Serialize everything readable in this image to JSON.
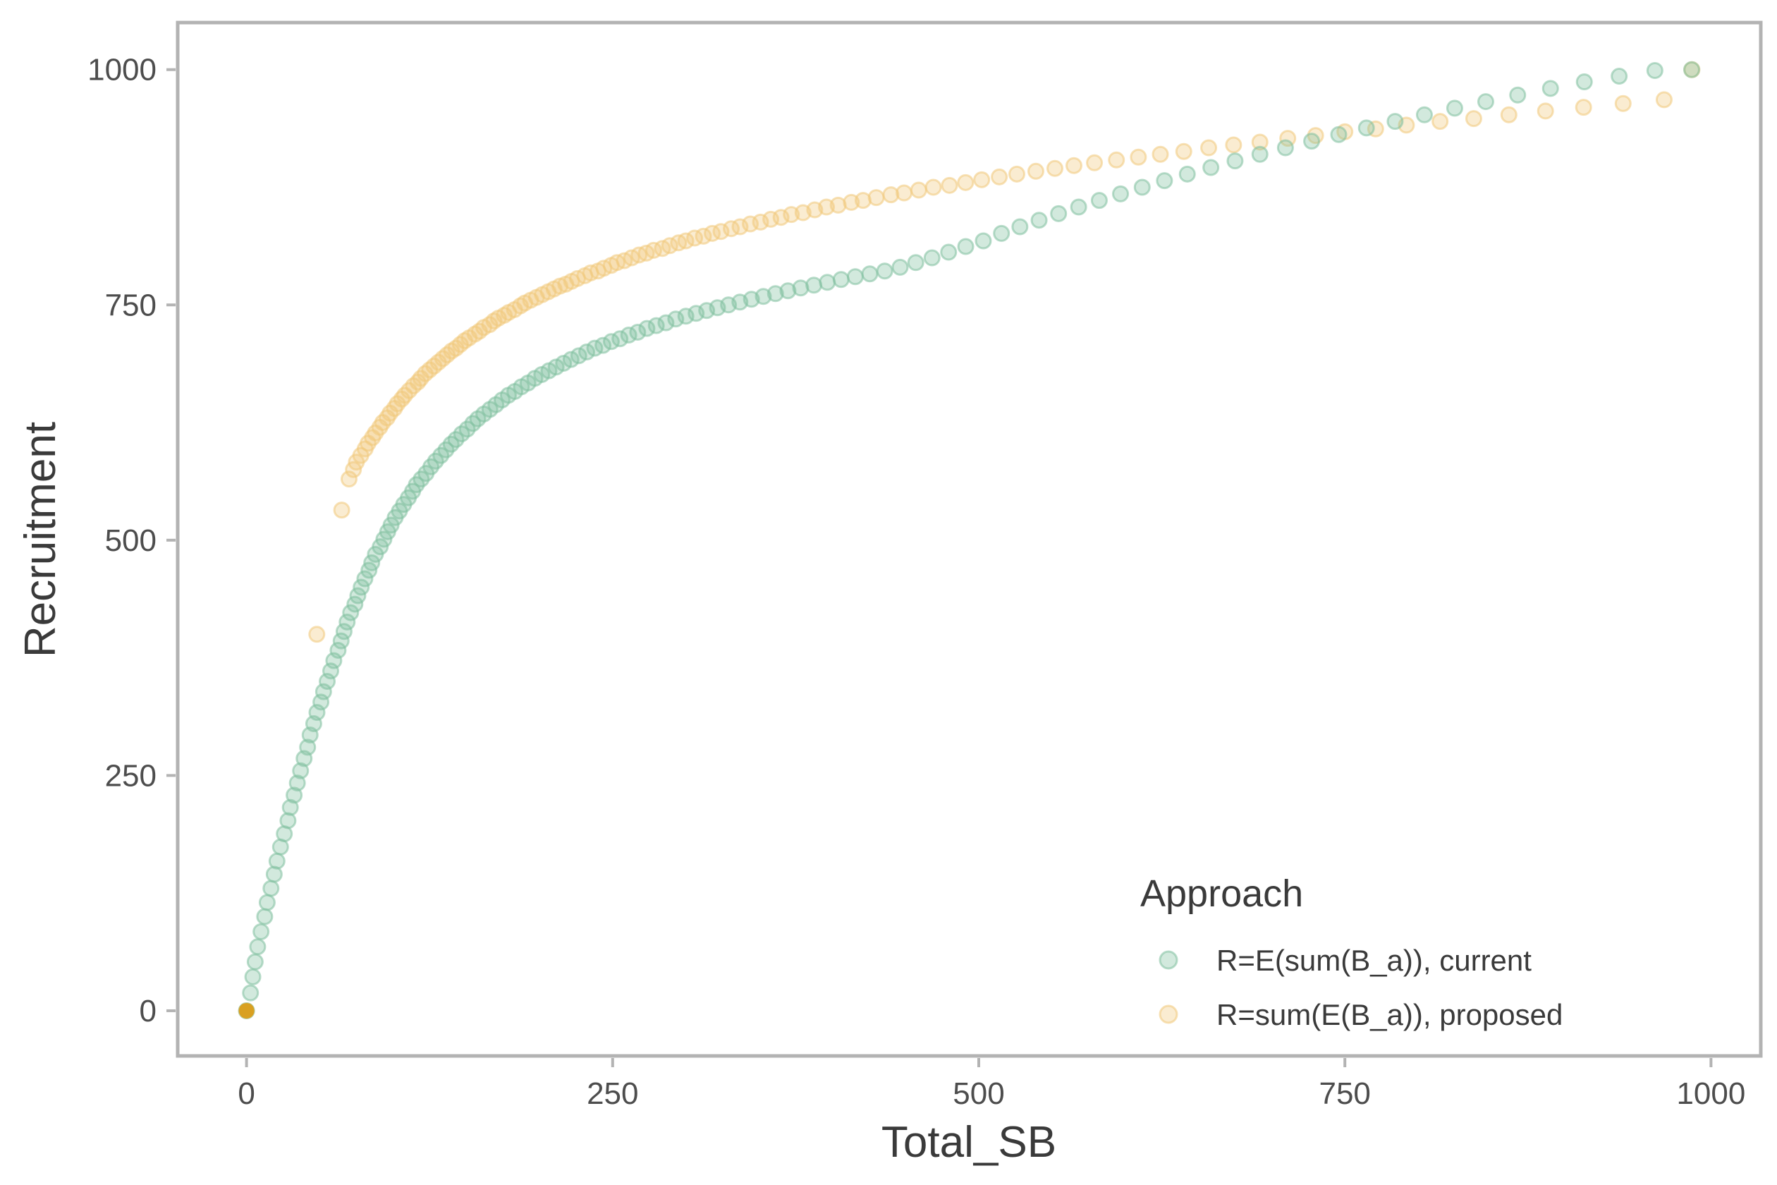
{
  "chart_data": {
    "type": "scatter",
    "title": "",
    "xlabel": "Total_SB",
    "ylabel": "Recruitment",
    "xlim": [
      -47,
      1034
    ],
    "ylim": [
      -48,
      1050
    ],
    "xticks": [
      0,
      250,
      500,
      750,
      1000
    ],
    "yticks": [
      0,
      250,
      500,
      750,
      1000
    ],
    "grid": false,
    "legend": {
      "title": "Approach",
      "position": "bottom-right"
    },
    "series": [
      {
        "name": "R=E(sum(B_a)), current",
        "color": "#7fbf9f",
        "points": [
          [
            0,
            0
          ],
          [
            2.7,
            19
          ],
          [
            4.3,
            36
          ],
          [
            5.9,
            52
          ],
          [
            7.6,
            68
          ],
          [
            9.9,
            84
          ],
          [
            12.4,
            100
          ],
          [
            14.1,
            115
          ],
          [
            16.7,
            130
          ],
          [
            18.9,
            145
          ],
          [
            20.8,
            159
          ],
          [
            23.2,
            174
          ],
          [
            25.8,
            188
          ],
          [
            28.3,
            202
          ],
          [
            29.9,
            216
          ],
          [
            32.5,
            229
          ],
          [
            34.7,
            242
          ],
          [
            36.9,
            255
          ],
          [
            39.3,
            268
          ],
          [
            41.7,
            280
          ],
          [
            43.4,
            293
          ],
          [
            45.9,
            305
          ],
          [
            48.1,
            317
          ],
          [
            50.8,
            328
          ],
          [
            52.6,
            339
          ],
          [
            55.1,
            350
          ],
          [
            57.5,
            361
          ],
          [
            59.6,
            372
          ],
          [
            62.5,
            383
          ],
          [
            64.6,
            393
          ],
          [
            66.6,
            403
          ],
          [
            68.7,
            413
          ],
          [
            71.1,
            423
          ],
          [
            74,
            432
          ],
          [
            76,
            441
          ],
          [
            78.3,
            450
          ],
          [
            80.8,
            459
          ],
          [
            83.6,
            468
          ],
          [
            85.5,
            476
          ],
          [
            88,
            485
          ],
          [
            91.3,
            493
          ],
          [
            93.8,
            501
          ],
          [
            96.4,
            509
          ],
          [
            98.7,
            516
          ],
          [
            101.5,
            524
          ],
          [
            104.4,
            531
          ],
          [
            107.3,
            538
          ],
          [
            110.5,
            545
          ],
          [
            113.4,
            552
          ],
          [
            116,
            559
          ],
          [
            119.3,
            565
          ],
          [
            122.6,
            571
          ],
          [
            125.9,
            578
          ],
          [
            129.1,
            584
          ],
          [
            132.7,
            590
          ],
          [
            136.2,
            596
          ],
          [
            139.7,
            602
          ],
          [
            143,
            607
          ],
          [
            146.9,
            613
          ],
          [
            150.7,
            618
          ],
          [
            154.5,
            624
          ],
          [
            157.9,
            629
          ],
          [
            162,
            634
          ],
          [
            166.2,
            639
          ],
          [
            170.3,
            644
          ],
          [
            174.5,
            649
          ],
          [
            178.8,
            654
          ],
          [
            183.2,
            658
          ],
          [
            187.7,
            663
          ],
          [
            192.2,
            667
          ],
          [
            196.9,
            672
          ],
          [
            201.6,
            676
          ],
          [
            206.5,
            680
          ],
          [
            211.4,
            684
          ],
          [
            216.5,
            688
          ],
          [
            221.6,
            692
          ],
          [
            226.9,
            696
          ],
          [
            232.3,
            700
          ],
          [
            237.8,
            704
          ],
          [
            243.4,
            707
          ],
          [
            249.1,
            711
          ],
          [
            255,
            714
          ],
          [
            261,
            718
          ],
          [
            267.1,
            721
          ],
          [
            273.4,
            725
          ],
          [
            279.8,
            728
          ],
          [
            286.4,
            731
          ],
          [
            293.1,
            735
          ],
          [
            300,
            738
          ],
          [
            307,
            741
          ],
          [
            314.2,
            744
          ],
          [
            321.6,
            747
          ],
          [
            329.1,
            750
          ],
          [
            336.9,
            753
          ],
          [
            344.8,
            756
          ],
          [
            352.9,
            759
          ],
          [
            361.2,
            762
          ],
          [
            369.7,
            765
          ],
          [
            378.4,
            768
          ],
          [
            387.4,
            771
          ],
          [
            396.6,
            774
          ],
          [
            406,
            777
          ],
          [
            415.7,
            780
          ],
          [
            425.6,
            783
          ],
          [
            435.8,
            786
          ],
          [
            446.3,
            790
          ],
          [
            457,
            795
          ],
          [
            468.1,
            800
          ],
          [
            479.4,
            806
          ],
          [
            491.1,
            812
          ],
          [
            503.1,
            818
          ],
          [
            515.5,
            826
          ],
          [
            528.1,
            833
          ],
          [
            541.2,
            840
          ],
          [
            554.5,
            847
          ],
          [
            568.2,
            854
          ],
          [
            582.3,
            861
          ],
          [
            596.8,
            868
          ],
          [
            611.6,
            875
          ],
          [
            626.8,
            882
          ],
          [
            642.4,
            889
          ],
          [
            658.5,
            896
          ],
          [
            675,
            903
          ],
          [
            692,
            910
          ],
          [
            709.4,
            917
          ],
          [
            727.3,
            924
          ],
          [
            745.8,
            931
          ],
          [
            764.7,
            938
          ],
          [
            784.3,
            945
          ],
          [
            804.3,
            952
          ],
          [
            825,
            959
          ],
          [
            846.2,
            966
          ],
          [
            868,
            973
          ],
          [
            890.4,
            980
          ],
          [
            913.5,
            987
          ],
          [
            937.3,
            993
          ],
          [
            961.7,
            999
          ],
          [
            986.8,
            1000
          ]
        ]
      },
      {
        "name": "R=sum(E(B_a)), proposed",
        "color": "#f0c87a",
        "points": [
          [
            0,
            0
          ],
          [
            48,
            400
          ],
          [
            65,
            532
          ],
          [
            70,
            565
          ],
          [
            73,
            575
          ],
          [
            75,
            583
          ],
          [
            78,
            590
          ],
          [
            81,
            597
          ],
          [
            83,
            603
          ],
          [
            86,
            609
          ],
          [
            88,
            614
          ],
          [
            91,
            620
          ],
          [
            93,
            625
          ],
          [
            96,
            630
          ],
          [
            98,
            635
          ],
          [
            101,
            640
          ],
          [
            103,
            645
          ],
          [
            106,
            650
          ],
          [
            108,
            654
          ],
          [
            111,
            659
          ],
          [
            114,
            664
          ],
          [
            117,
            668
          ],
          [
            119,
            672
          ],
          [
            122,
            677
          ],
          [
            125,
            681
          ],
          [
            128,
            685
          ],
          [
            131,
            689
          ],
          [
            134,
            693
          ],
          [
            137,
            697
          ],
          [
            140,
            701
          ],
          [
            143,
            704
          ],
          [
            146,
            708
          ],
          [
            149,
            712
          ],
          [
            152,
            715
          ],
          [
            156,
            719
          ],
          [
            159,
            722
          ],
          [
            162,
            726
          ],
          [
            166,
            729
          ],
          [
            169,
            733
          ],
          [
            172,
            736
          ],
          [
            176,
            739
          ],
          [
            179,
            742
          ],
          [
            183,
            745
          ],
          [
            187,
            749
          ],
          [
            190,
            752
          ],
          [
            194,
            755
          ],
          [
            198,
            758
          ],
          [
            202,
            761
          ],
          [
            206,
            764
          ],
          [
            210,
            767
          ],
          [
            214,
            770
          ],
          [
            218,
            772
          ],
          [
            222,
            775
          ],
          [
            226,
            778
          ],
          [
            231,
            781
          ],
          [
            235,
            784
          ],
          [
            240,
            786
          ],
          [
            244,
            789
          ],
          [
            249,
            792
          ],
          [
            253,
            795
          ],
          [
            258,
            797
          ],
          [
            263,
            800
          ],
          [
            268,
            803
          ],
          [
            273,
            805
          ],
          [
            278,
            808
          ],
          [
            284,
            810
          ],
          [
            289,
            813
          ],
          [
            295,
            816
          ],
          [
            300,
            818
          ],
          [
            306,
            821
          ],
          [
            312,
            823
          ],
          [
            318,
            826
          ],
          [
            324,
            828
          ],
          [
            331,
            831
          ],
          [
            337,
            833
          ],
          [
            344,
            836
          ],
          [
            351,
            838
          ],
          [
            358,
            841
          ],
          [
            365,
            843
          ],
          [
            372,
            846
          ],
          [
            380,
            848
          ],
          [
            388,
            851
          ],
          [
            396,
            854
          ],
          [
            404,
            856
          ],
          [
            413,
            859
          ],
          [
            421,
            861
          ],
          [
            430,
            864
          ],
          [
            440,
            867
          ],
          [
            449,
            869
          ],
          [
            459,
            872
          ],
          [
            469,
            875
          ],
          [
            480,
            877
          ],
          [
            491,
            880
          ],
          [
            502,
            883
          ],
          [
            514,
            886
          ],
          [
            526,
            889
          ],
          [
            539,
            892
          ],
          [
            552,
            895
          ],
          [
            565,
            898
          ],
          [
            579,
            901
          ],
          [
            594,
            904
          ],
          [
            609,
            907
          ],
          [
            624,
            910
          ],
          [
            640,
            913
          ],
          [
            657,
            917
          ],
          [
            674,
            920
          ],
          [
            692,
            923
          ],
          [
            711,
            927
          ],
          [
            730,
            930
          ],
          [
            750,
            934
          ],
          [
            771,
            937
          ],
          [
            792,
            941
          ],
          [
            815,
            945
          ],
          [
            838,
            948
          ],
          [
            862,
            952
          ],
          [
            887,
            956
          ],
          [
            913,
            960
          ],
          [
            940,
            964
          ],
          [
            968,
            968
          ],
          [
            987,
            1000
          ]
        ]
      }
    ]
  }
}
